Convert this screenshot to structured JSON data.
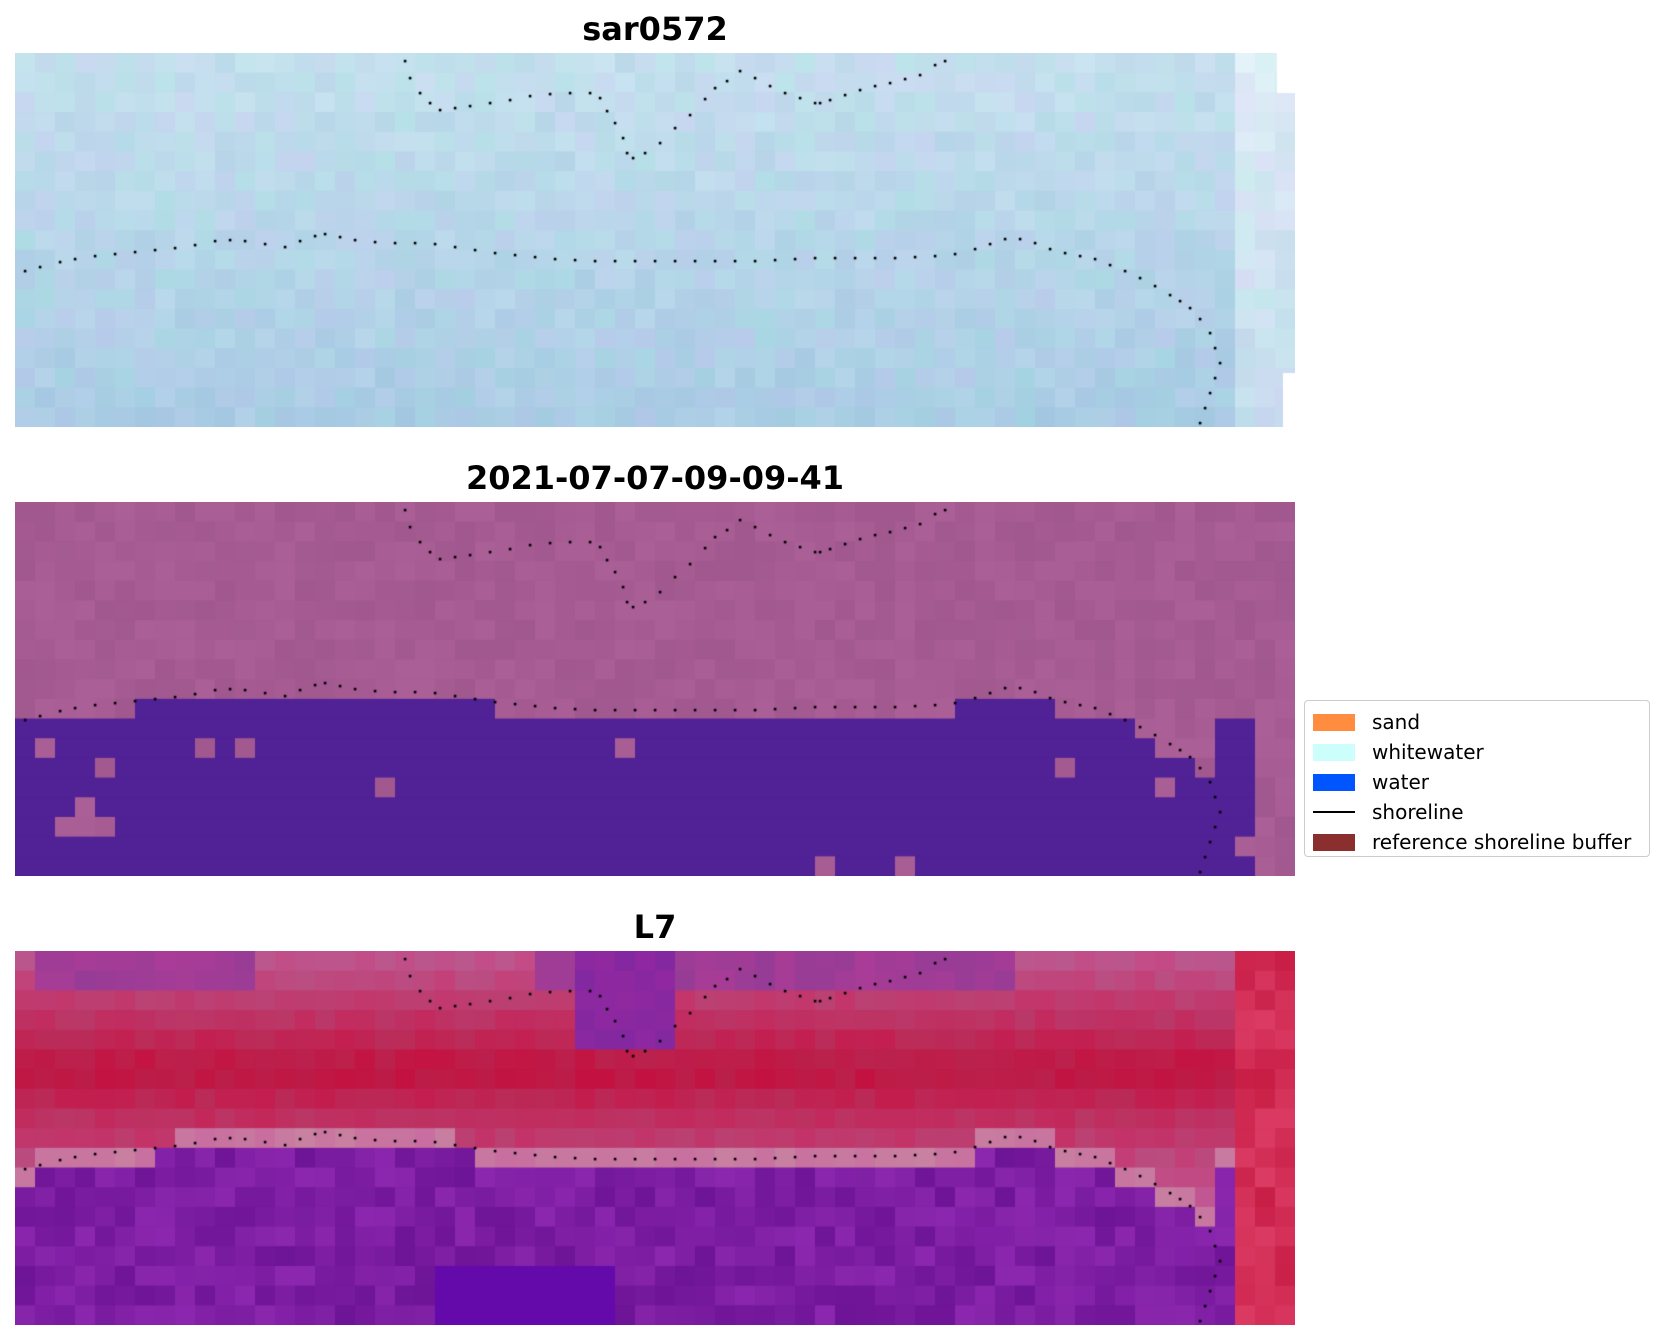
{
  "panels": [
    {
      "title": "sar0572"
    },
    {
      "title": "2021-07-07-09-09-41"
    },
    {
      "title": "L7"
    }
  ],
  "legend": {
    "items": [
      {
        "label": "sand",
        "type": "patch",
        "color": "#ff8c3f"
      },
      {
        "label": "whitewater",
        "type": "patch",
        "color": "#ccfffc"
      },
      {
        "label": "water",
        "type": "patch",
        "color": "#0055ff"
      },
      {
        "label": "shoreline",
        "type": "line",
        "color": "#000000"
      },
      {
        "label": "reference shoreline buffer",
        "type": "patch",
        "color": "#8b2e2e"
      }
    ]
  },
  "colors": {
    "rgb_base": "#bcd9ea",
    "classified_land": "#a35a92",
    "classified_water": "#512196",
    "mndwi_high": "#c8124a",
    "mndwi_low": "#6c1ea0",
    "shoreline_points": "#000000"
  }
}
